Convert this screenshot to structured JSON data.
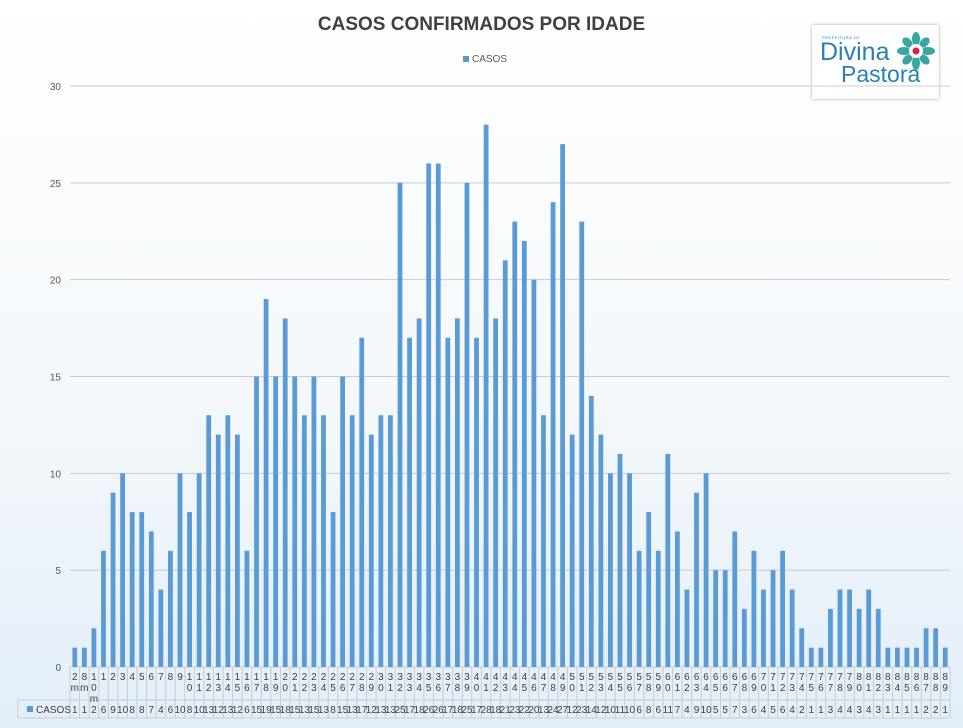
{
  "logo": {
    "top_text": "PREFEITURA DE",
    "word1": "Divina",
    "word2": "Pastora"
  },
  "chart_data": {
    "type": "bar",
    "title": "CASOS CONFIRMADOS POR IDADE",
    "legend": "top-center",
    "grid": true,
    "ylim": [
      0,
      30
    ],
    "yticks": [
      0,
      5,
      10,
      15,
      20,
      25,
      30
    ],
    "categories": [
      "2 m",
      "8 m",
      "10 m",
      "1",
      "2",
      "3",
      "4",
      "5",
      "6",
      "7",
      "8",
      "9",
      "10",
      "11",
      "12",
      "13",
      "14",
      "15",
      "16",
      "17",
      "18",
      "19",
      "20",
      "21",
      "22",
      "23",
      "24",
      "25",
      "26",
      "27",
      "28",
      "29",
      "30",
      "31",
      "32",
      "33",
      "34",
      "35",
      "36",
      "37",
      "38",
      "39",
      "40",
      "41",
      "42",
      "43",
      "44",
      "45",
      "46",
      "47",
      "48",
      "49",
      "50",
      "51",
      "52",
      "53",
      "54",
      "55",
      "56",
      "57",
      "58",
      "59",
      "60",
      "61",
      "62",
      "63",
      "64",
      "65",
      "66",
      "67",
      "68",
      "69",
      "70",
      "71",
      "72",
      "73",
      "74",
      "75",
      "76",
      "77",
      "78",
      "79",
      "80",
      "81",
      "82",
      "83",
      "84",
      "85",
      "86",
      "87",
      "88",
      "89"
    ],
    "series": [
      {
        "name": "CASOS",
        "color": "#5b9bd5",
        "values": [
          1,
          1,
          2,
          6,
          9,
          10,
          8,
          8,
          7,
          4,
          6,
          10,
          8,
          10,
          13,
          12,
          13,
          12,
          6,
          15,
          19,
          15,
          18,
          15,
          13,
          15,
          13,
          8,
          15,
          13,
          17,
          12,
          13,
          13,
          25,
          17,
          18,
          26,
          26,
          17,
          18,
          25,
          17,
          28,
          18,
          21,
          23,
          22,
          20,
          13,
          24,
          27,
          12,
          23,
          14,
          12,
          10,
          11,
          10,
          6,
          8,
          6,
          11,
          7,
          4,
          9,
          10,
          5,
          5,
          7,
          3,
          6,
          4,
          5,
          6,
          4,
          2,
          1,
          1,
          3,
          4,
          4,
          3,
          4,
          3,
          1,
          1,
          1,
          1,
          2,
          2,
          1
        ]
      }
    ]
  }
}
